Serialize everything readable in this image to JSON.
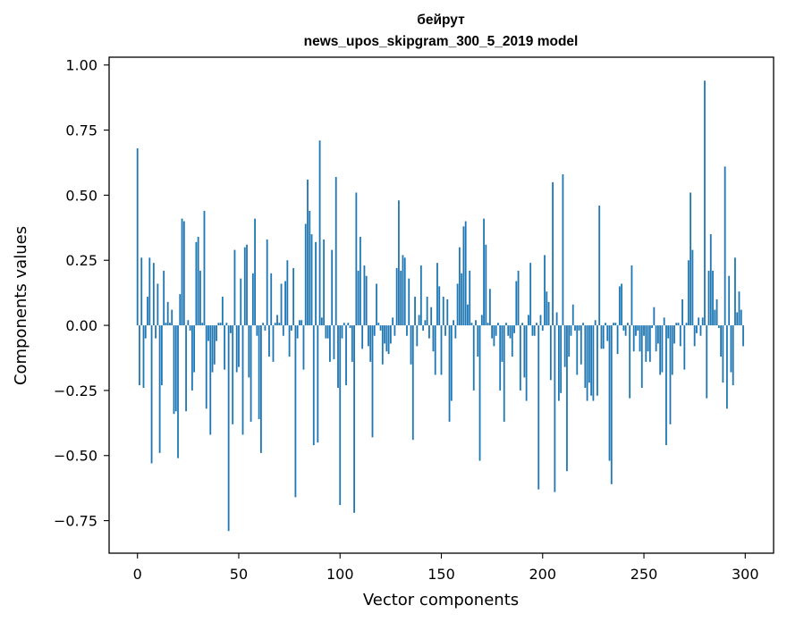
{
  "chart_data": {
    "type": "bar",
    "title": "бейрут",
    "subtitle": "news_upos_skipgram_300_5_2019 model",
    "xlabel": "Vector components",
    "ylabel": "Components values",
    "xlim": [
      -14,
      314
    ],
    "ylim": [
      -0.875,
      1.03
    ],
    "xticks": [
      0,
      50,
      100,
      150,
      200,
      250,
      300
    ],
    "yticks": [
      -0.75,
      -0.5,
      -0.25,
      0.0,
      0.25,
      0.5,
      0.75,
      1.0
    ],
    "ytick_labels": [
      "−0.75",
      "−0.50",
      "−0.25",
      "0.00",
      "0.25",
      "0.50",
      "0.75",
      "1.00"
    ],
    "bar_color": "#1f77b4",
    "values": [
      0.68,
      -0.23,
      0.26,
      -0.24,
      -0.05,
      0.11,
      0.26,
      -0.53,
      0.24,
      -0.05,
      0.16,
      -0.49,
      -0.23,
      0.21,
      0.01,
      0.09,
      0.01,
      0.06,
      -0.34,
      -0.33,
      -0.51,
      0.12,
      0.41,
      0.4,
      -0.33,
      0.02,
      -0.02,
      -0.25,
      -0.18,
      0.32,
      0.34,
      0.21,
      0.01,
      0.44,
      -0.32,
      -0.06,
      -0.42,
      -0.18,
      -0.15,
      -0.06,
      0.01,
      0.01,
      0.11,
      -0.17,
      0.01,
      -0.79,
      -0.03,
      -0.38,
      0.29,
      -0.18,
      -0.16,
      0.18,
      -0.42,
      0.3,
      0.31,
      -0.2,
      -0.37,
      0.2,
      0.41,
      -0.04,
      -0.36,
      -0.49,
      0.01,
      -0.02,
      0.33,
      -0.12,
      0.2,
      -0.14,
      0.01,
      0.04,
      0.01,
      0.16,
      -0.04,
      0.17,
      0.25,
      -0.12,
      -0.02,
      0.22,
      -0.66,
      -0.05,
      0.02,
      0.02,
      -0.17,
      0.39,
      0.56,
      0.44,
      0.35,
      -0.46,
      0.32,
      -0.45,
      0.71,
      0.03,
      0.33,
      -0.05,
      -0.05,
      -0.14,
      0.29,
      -0.13,
      0.57,
      -0.24,
      -0.69,
      -0.05,
      0.01,
      -0.23,
      0.01,
      -0.01,
      -0.14,
      -0.72,
      0.51,
      0.21,
      0.34,
      -0.09,
      0.23,
      0.19,
      -0.08,
      -0.14,
      -0.43,
      -0.04,
      0.16,
      0.01,
      -0.02,
      -0.15,
      -0.07,
      -0.1,
      -0.11,
      -0.07,
      0.03,
      -0.04,
      0.22,
      0.48,
      0.21,
      0.27,
      0.26,
      -0.04,
      0.18,
      -0.15,
      -0.44,
      0.11,
      -0.08,
      0.04,
      0.23,
      -0.02,
      0.02,
      0.11,
      -0.05,
      0.07,
      -0.1,
      -0.19,
      0.24,
      0.15,
      -0.19,
      0.11,
      -0.04,
      0.1,
      -0.37,
      -0.29,
      0.02,
      -0.05,
      0.16,
      0.3,
      0.2,
      0.38,
      0.4,
      0.08,
      0.21,
      0.01,
      -0.25,
      0.02,
      -0.12,
      -0.52,
      0.04,
      0.41,
      0.31,
      0.01,
      0.14,
      -0.05,
      -0.08,
      -0.04,
      0.01,
      -0.25,
      -0.14,
      -0.37,
      0.01,
      -0.04,
      -0.05,
      -0.12,
      -0.03,
      0.17,
      0.21,
      -0.25,
      0.01,
      -0.2,
      -0.29,
      0.04,
      0.24,
      -0.04,
      -0.04,
      0.01,
      -0.63,
      0.04,
      -0.02,
      0.27,
      0.13,
      0.09,
      -0.21,
      0.55,
      -0.64,
      0.05,
      -0.29,
      -0.26,
      0.58,
      -0.16,
      -0.56,
      -0.12,
      -0.04,
      0.08,
      -0.02,
      -0.19,
      -0.02,
      -0.15,
      0.01,
      -0.24,
      -0.29,
      -0.22,
      -0.27,
      -0.29,
      0.02,
      -0.27,
      0.46,
      -0.09,
      -0.09,
      0.01,
      -0.06,
      -0.52,
      -0.61,
      0.01,
      0.01,
      -0.11,
      0.15,
      0.16,
      -0.02,
      -0.04,
      0.01,
      -0.28,
      0.23,
      -0.1,
      -0.04,
      -0.02,
      -0.1,
      -0.24,
      -0.04,
      -0.14,
      -0.1,
      -0.14,
      -0.01,
      0.07,
      -0.1,
      -0.07,
      -0.19,
      -0.18,
      0.03,
      -0.46,
      -0.05,
      -0.38,
      -0.19,
      -0.07,
      0.01,
      0.01,
      -0.08,
      0.1,
      -0.17,
      0.01,
      0.25,
      0.51,
      0.29,
      -0.08,
      -0.03,
      0.03,
      -0.04,
      0.03,
      0.94,
      -0.28,
      0.21,
      0.35,
      0.21,
      0.06,
      0.1,
      -0.01,
      -0.12,
      -0.22,
      0.61,
      -0.32,
      0.19,
      -0.18,
      -0.23,
      0.26,
      0.05,
      0.13,
      0.06,
      -0.08
    ]
  }
}
